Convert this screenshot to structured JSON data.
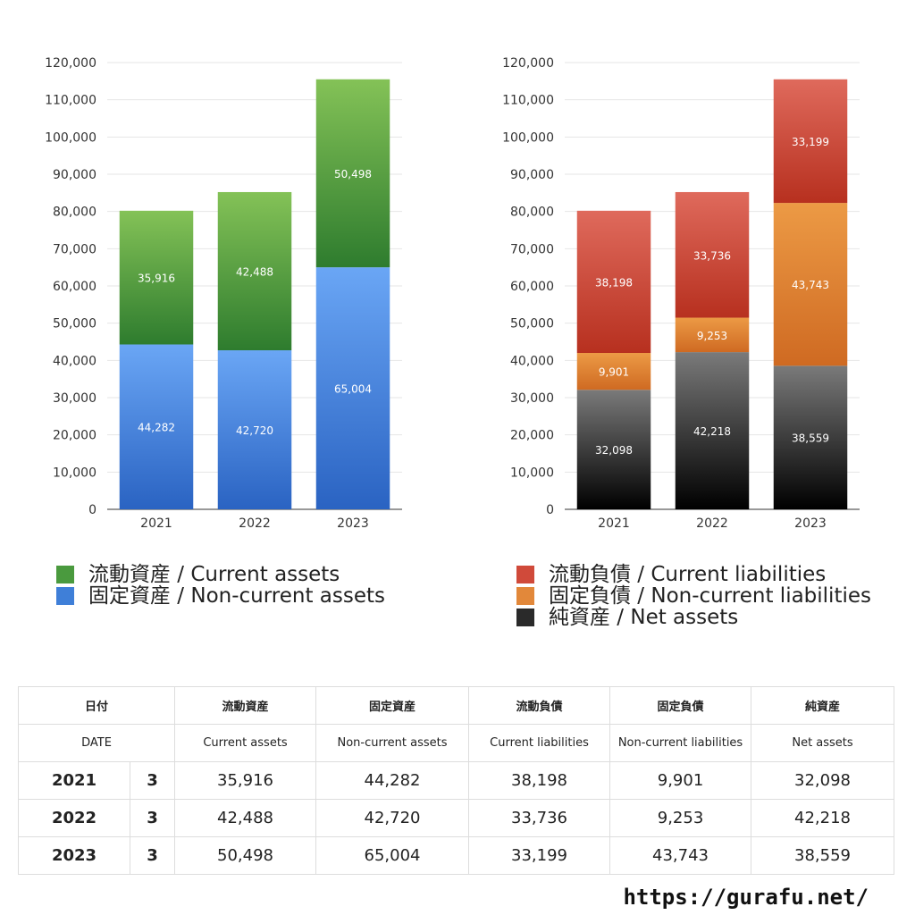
{
  "chart_data": [
    {
      "type": "bar",
      "stacked": true,
      "categories": [
        "2021",
        "2022",
        "2023"
      ],
      "ylim": [
        0,
        120000
      ],
      "yticks": [
        "0",
        "10,000",
        "20,000",
        "30,000",
        "40,000",
        "50,000",
        "60,000",
        "70,000",
        "80,000",
        "90,000",
        "100,000",
        "110,000",
        "120,000"
      ],
      "grid": true,
      "legend_position": "bottom",
      "series": [
        {
          "name": "固定資産 / Non-current assets",
          "values": [
            44282,
            42720,
            65004
          ],
          "labels": [
            "44,282",
            "42,720",
            "65,004"
          ],
          "color_top": "#6aa6f5",
          "color_bottom": "#2a63c2"
        },
        {
          "name": "流動資産 / Current assets",
          "values": [
            35916,
            42488,
            50498
          ],
          "labels": [
            "35,916",
            "42,488",
            "50,498"
          ],
          "color_top": "#84c257",
          "color_bottom": "#2e7c2e"
        }
      ],
      "legend": [
        {
          "name": "流動資産 / Current assets",
          "color": "#4a9a3e"
        },
        {
          "name": "固定資産 / Non-current assets",
          "color": "#3f7fd8"
        }
      ]
    },
    {
      "type": "bar",
      "stacked": true,
      "categories": [
        "2021",
        "2022",
        "2023"
      ],
      "ylim": [
        0,
        120000
      ],
      "yticks": [
        "0",
        "10,000",
        "20,000",
        "30,000",
        "40,000",
        "50,000",
        "60,000",
        "70,000",
        "80,000",
        "90,000",
        "100,000",
        "110,000",
        "120,000"
      ],
      "grid": true,
      "legend_position": "bottom",
      "series": [
        {
          "name": "純資産 / Net assets",
          "values": [
            32098,
            42218,
            38559
          ],
          "labels": [
            "32,098",
            "42,218",
            "38,559"
          ],
          "color_top": "#7a7a7a",
          "color_bottom": "#000000"
        },
        {
          "name": "固定負債 / Non-current liabilities",
          "values": [
            9901,
            9253,
            43743
          ],
          "labels": [
            "9,901",
            "9,253",
            "43,743"
          ],
          "color_top": "#ec9a45",
          "color_bottom": "#cf6a22"
        },
        {
          "name": "流動負債 / Current liabilities",
          "values": [
            38198,
            33736,
            33199
          ],
          "labels": [
            "38,198",
            "33,736",
            "33,199"
          ],
          "color_top": "#df6a5c",
          "color_bottom": "#b7301f"
        }
      ],
      "legend": [
        {
          "name": "流動負債 / Current liabilities",
          "color": "#d04a3a"
        },
        {
          "name": "固定負債 / Non-current liabilities",
          "color": "#e2883a"
        },
        {
          "name": "純資産 / Net assets",
          "color": "#2a2a2a"
        }
      ]
    }
  ],
  "table": {
    "headers_ja": [
      "日付",
      "流動資産",
      "固定資産",
      "流動負債",
      "固定負債",
      "純資産"
    ],
    "headers_en": [
      "DATE",
      "Current assets",
      "Non-current assets",
      "Current liabilities",
      "Non-current liabilities",
      "Net assets"
    ],
    "rows": [
      {
        "year": "2021",
        "month": "3",
        "values": [
          "35,916",
          "44,282",
          "38,198",
          "9,901",
          "32,098"
        ]
      },
      {
        "year": "2022",
        "month": "3",
        "values": [
          "42,488",
          "42,720",
          "33,736",
          "9,253",
          "42,218"
        ]
      },
      {
        "year": "2023",
        "month": "3",
        "values": [
          "50,498",
          "65,004",
          "33,199",
          "43,743",
          "38,559"
        ]
      }
    ]
  },
  "footer_url": "https://gurafu.net/"
}
